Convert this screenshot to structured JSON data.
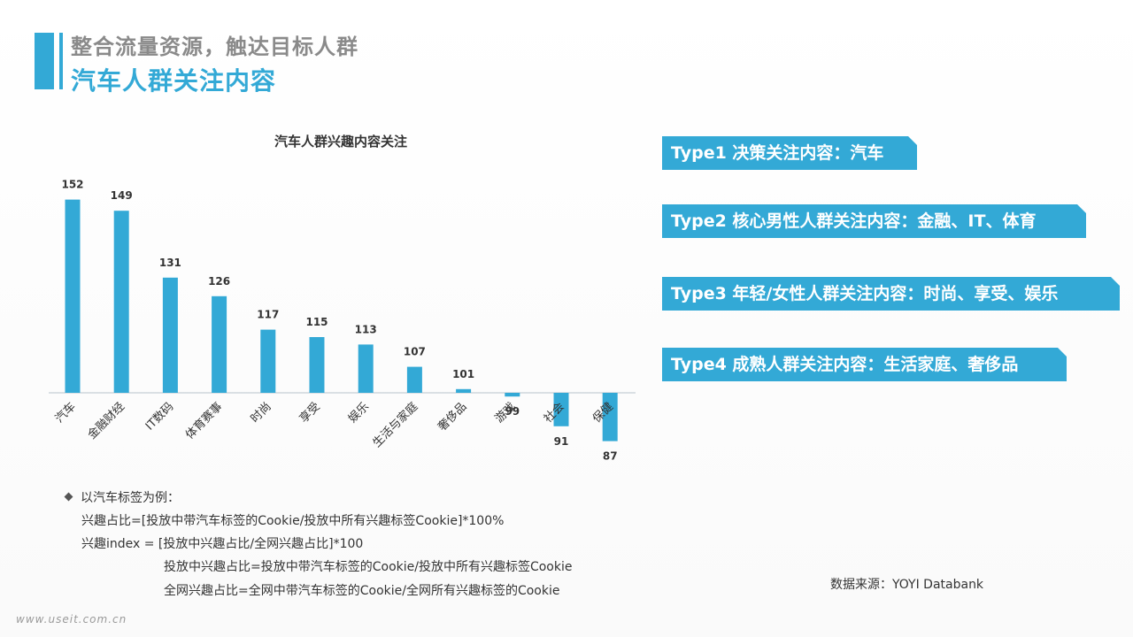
{
  "header": {
    "subtitle": "整合流量资源，触达目标人群",
    "title": "汽车人群关注内容"
  },
  "chart_data": {
    "type": "bar",
    "title": "汽车人群兴趣内容关注",
    "categories": [
      "汽车",
      "金融财经",
      "IT数码",
      "体育赛事",
      "时尚",
      "享受",
      "娱乐",
      "生活与家庭",
      "奢侈品",
      "游戏",
      "社会",
      "保健"
    ],
    "values": [
      152,
      149,
      131,
      126,
      117,
      115,
      113,
      107,
      101,
      99,
      91,
      87
    ],
    "value_labels": [
      "152",
      "149",
      "131",
      "126",
      "117",
      "115",
      "113",
      "107",
      "101",
      "99",
      "91",
      "87"
    ],
    "baseline": 100,
    "xlabel": "",
    "ylabel": "",
    "grid": false,
    "legend": false,
    "colors": {
      "bar": "#33a9d6"
    }
  },
  "types": [
    {
      "label": "Type1 决策关注内容：汽车"
    },
    {
      "label": "Type2 核心男性人群关注内容：金融、IT、体育"
    },
    {
      "label": "Type3 年轻/女性人群关注内容：时尚、享受、娱乐"
    },
    {
      "label": "Type4 成熟人群关注内容：生活家庭、奢侈品"
    }
  ],
  "notes": {
    "heading": "以汽车标签为例：",
    "line1": "兴趣占比=[投放中带汽车标签的Cookie/投放中所有兴趣标签Cookie]*100%",
    "line2": "兴趣index = [投放中兴趣占比/全网兴趣占比]*100",
    "line3": "投放中兴趣占比=投放中带汽车标签的Cookie/投放中所有兴趣标签Cookie",
    "line4": "全网兴趣占比=全网中带汽车标签的Cookie/全网所有兴趣标签的Cookie"
  },
  "source": "数据来源：YOYI Databank",
  "watermark": "www.useit.com.cn",
  "colors": {
    "accent": "#33a9d6",
    "subtitle": "#8a8a8a",
    "text": "#333333"
  }
}
